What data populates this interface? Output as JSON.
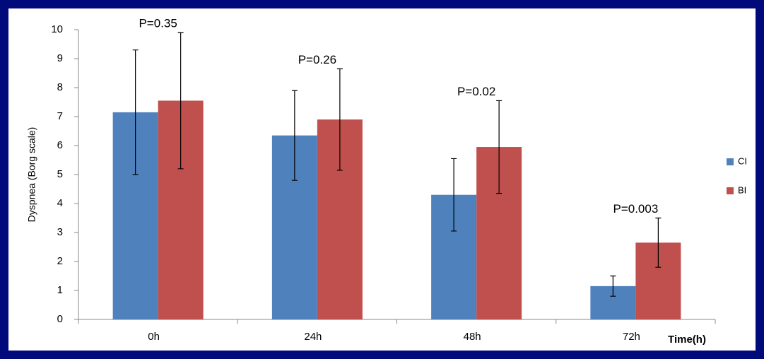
{
  "chart_data": {
    "type": "bar",
    "y_label": "Dyspnea (Borg scale)",
    "x_label": "Time(h)",
    "categories": [
      "0h",
      "24h",
      "48h",
      "72h"
    ],
    "series": [
      {
        "name": "CI",
        "color": "#4f81bd",
        "values": [
          7.15,
          6.35,
          4.3,
          1.15
        ],
        "errors": [
          2.15,
          1.55,
          1.25,
          0.35
        ]
      },
      {
        "name": "BI",
        "color": "#c0504d",
        "values": [
          7.55,
          6.9,
          5.95,
          2.65
        ],
        "errors": [
          2.35,
          1.75,
          1.6,
          0.85
        ]
      }
    ],
    "annotations": [
      "P=0.35",
      "P=0.26",
      "P=0.02",
      "P=0.003"
    ],
    "ylim": [
      0,
      10
    ],
    "yticks": [
      0,
      1,
      2,
      3,
      4,
      5,
      6,
      7,
      8,
      9,
      10
    ],
    "legend": "right"
  }
}
